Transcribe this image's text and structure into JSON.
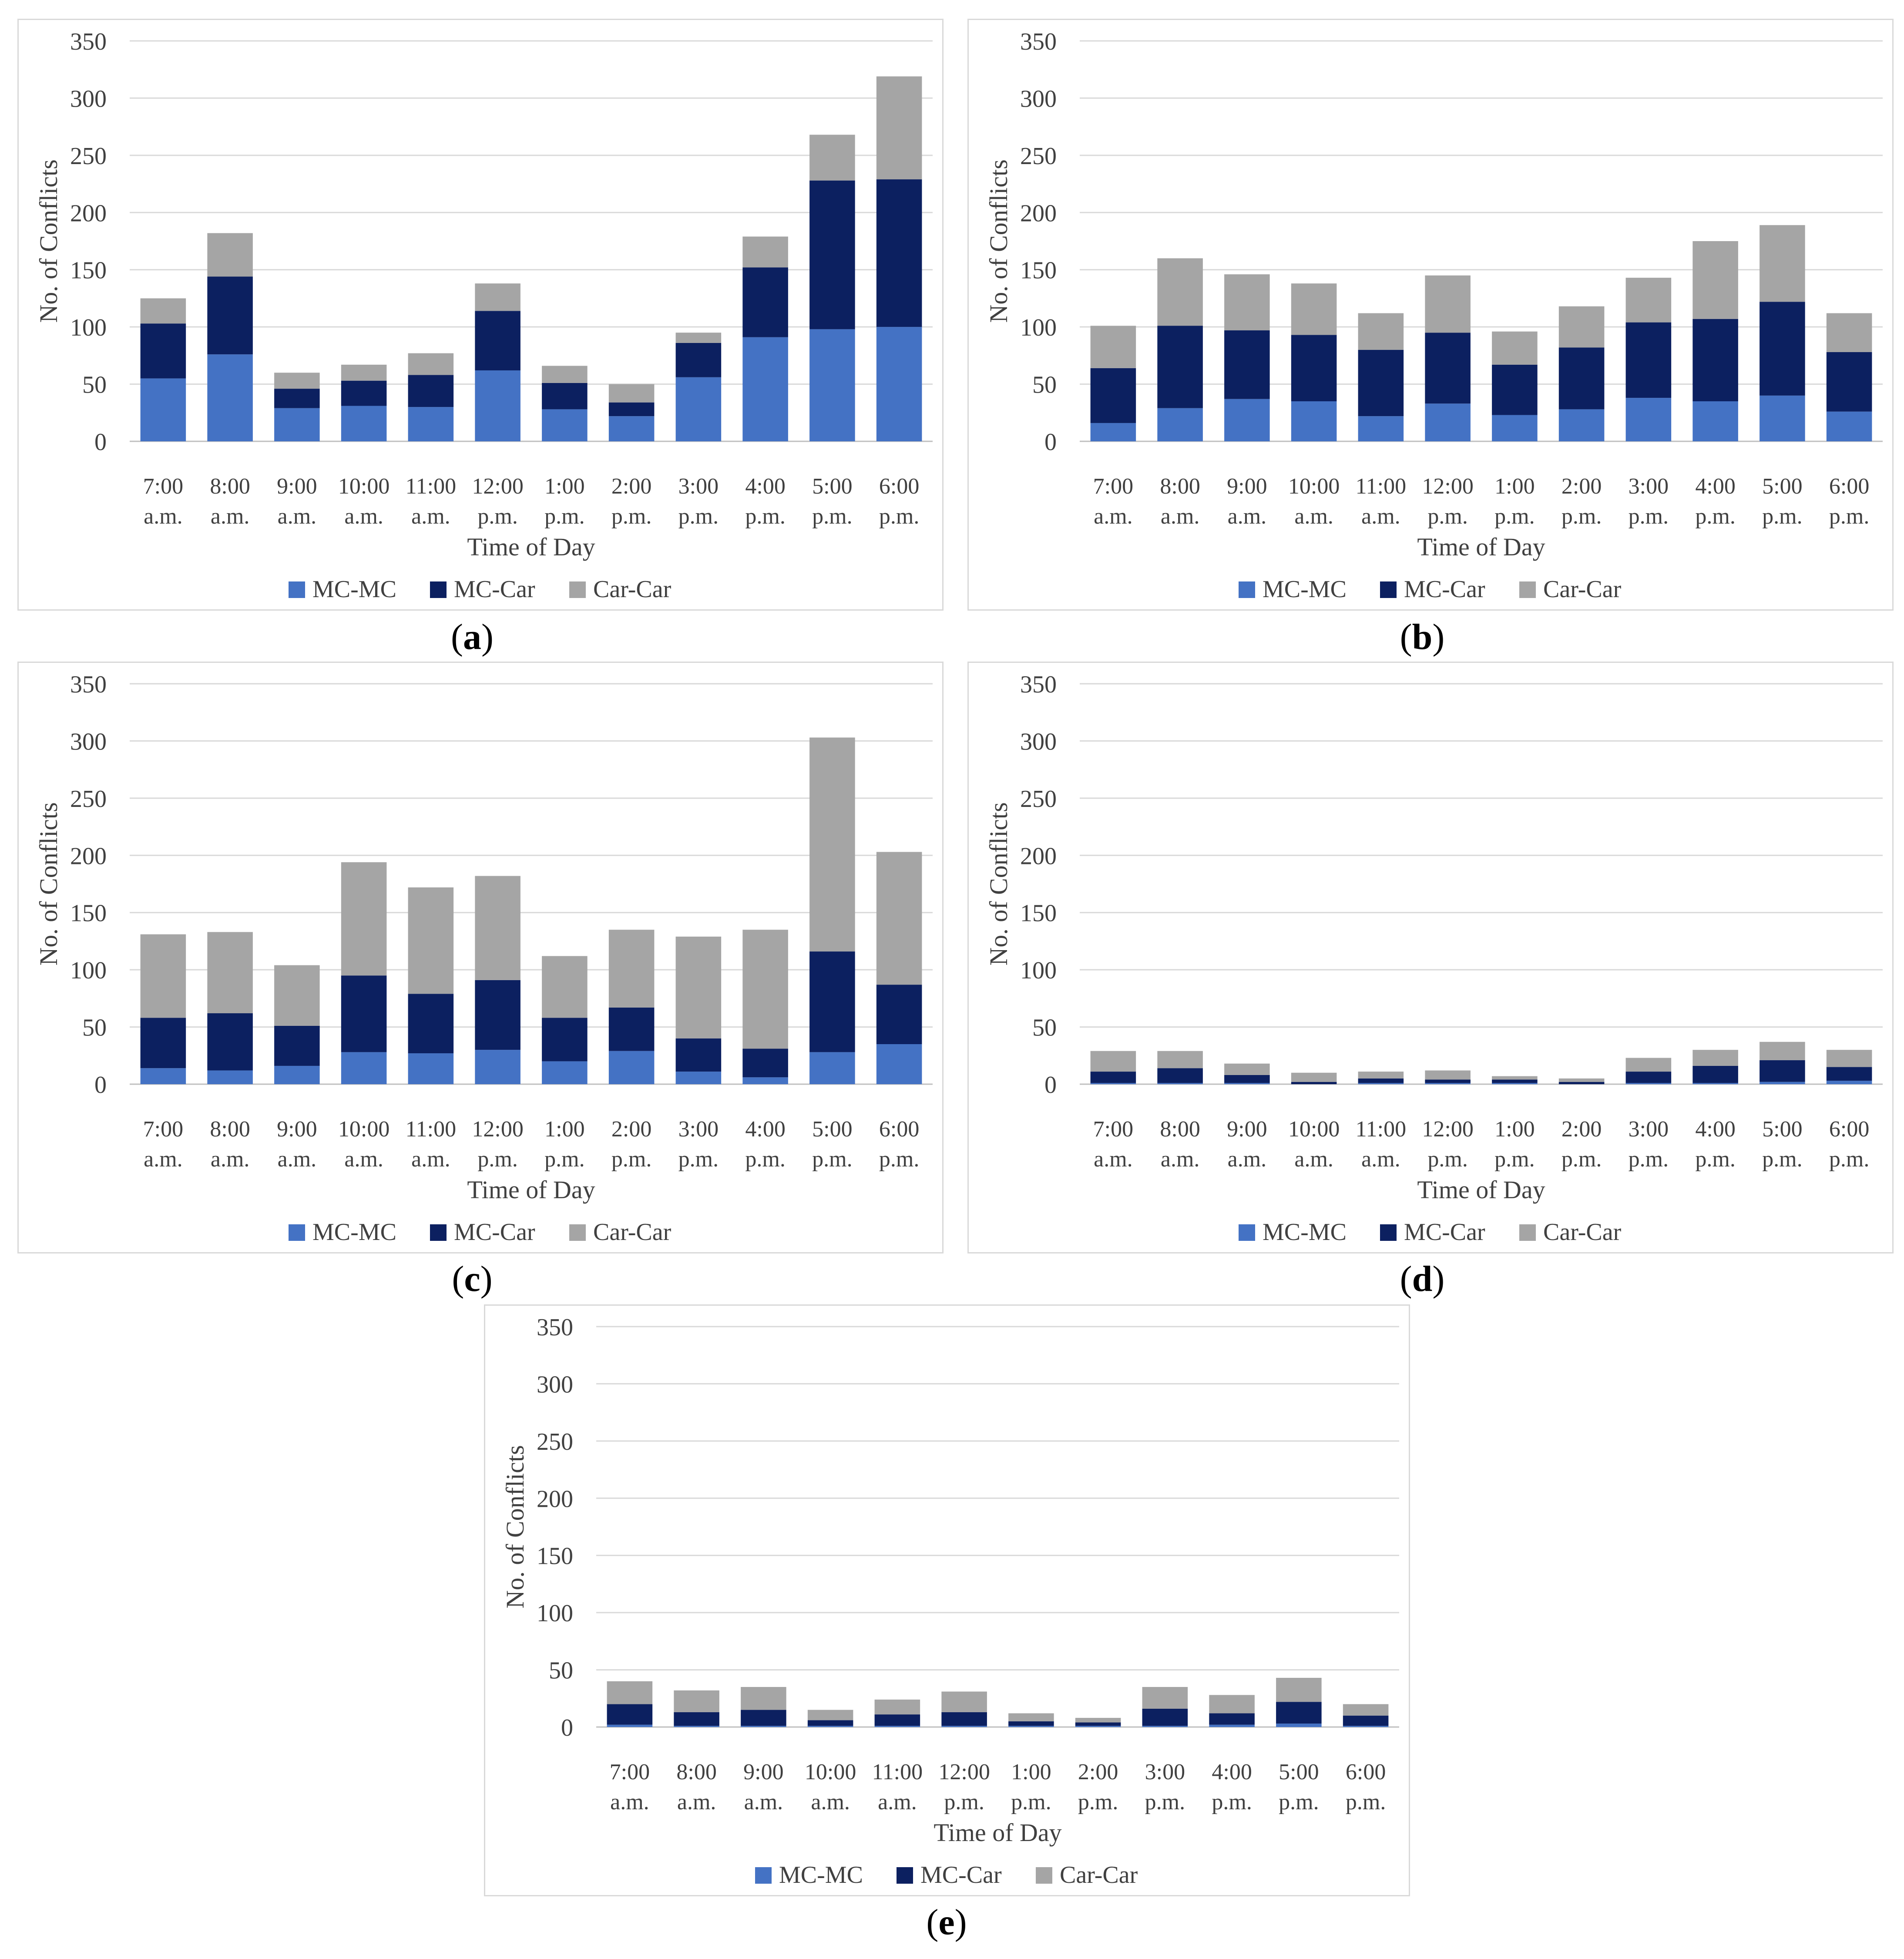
{
  "colors": {
    "MC-MC": "#4472c4",
    "MC-Car": "#0c2060",
    "Car-Car": "#a5a5a5",
    "grid": "#d9d9d9",
    "text": "#404040"
  },
  "common": {
    "ylabel": "No. of Conflicts",
    "xlabel": "Time of Day",
    "yticks": [
      "0",
      "50",
      "100",
      "150",
      "200",
      "250",
      "300",
      "350"
    ],
    "categories": [
      [
        "7:00",
        "a.m."
      ],
      [
        "8:00",
        "a.m."
      ],
      [
        "9:00",
        "a.m."
      ],
      [
        "10:00",
        "a.m."
      ],
      [
        "11:00",
        "a.m."
      ],
      [
        "12:00",
        "p.m."
      ],
      [
        "1:00",
        "p.m."
      ],
      [
        "2:00",
        "p.m."
      ],
      [
        "3:00",
        "p.m."
      ],
      [
        "4:00",
        "p.m."
      ],
      [
        "5:00",
        "p.m."
      ],
      [
        "6:00",
        "p.m."
      ]
    ],
    "legend": [
      "MC-MC",
      "MC-Car",
      "Car-Car"
    ]
  },
  "chart_data": [
    {
      "panel": "a",
      "caption": "a",
      "type": "bar",
      "stacked": true,
      "ylim": [
        0,
        350
      ],
      "xlabel": "Time of Day",
      "ylabel": "No. of Conflicts",
      "grid": true,
      "legend_position": "bottom",
      "categories": [
        "7:00 a.m.",
        "8:00 a.m.",
        "9:00 a.m.",
        "10:00 a.m.",
        "11:00 a.m.",
        "12:00 p.m.",
        "1:00 p.m.",
        "2:00 p.m.",
        "3:00 p.m.",
        "4:00 p.m.",
        "5:00 p.m.",
        "6:00 p.m."
      ],
      "series": [
        {
          "name": "MC-MC",
          "values": [
            55,
            76,
            29,
            31,
            30,
            62,
            28,
            22,
            56,
            91,
            98,
            100
          ]
        },
        {
          "name": "MC-Car",
          "values": [
            48,
            68,
            17,
            22,
            28,
            52,
            23,
            12,
            30,
            61,
            130,
            129
          ]
        },
        {
          "name": "Car-Car",
          "values": [
            22,
            38,
            14,
            14,
            19,
            24,
            15,
            16,
            9,
            27,
            40,
            90
          ]
        }
      ]
    },
    {
      "panel": "b",
      "caption": "b",
      "type": "bar",
      "stacked": true,
      "ylim": [
        0,
        350
      ],
      "xlabel": "Time of Day",
      "ylabel": "No. of Conflicts",
      "grid": true,
      "legend_position": "bottom",
      "categories": [
        "7:00 a.m.",
        "8:00 a.m.",
        "9:00 a.m.",
        "10:00 a.m.",
        "11:00 a.m.",
        "12:00 p.m.",
        "1:00 p.m.",
        "2:00 p.m.",
        "3:00 p.m.",
        "4:00 p.m.",
        "5:00 p.m.",
        "6:00 p.m."
      ],
      "series": [
        {
          "name": "MC-MC",
          "values": [
            16,
            29,
            37,
            35,
            22,
            33,
            23,
            28,
            38,
            35,
            40,
            26
          ]
        },
        {
          "name": "MC-Car",
          "values": [
            48,
            72,
            60,
            58,
            58,
            62,
            44,
            54,
            66,
            72,
            82,
            52
          ]
        },
        {
          "name": "Car-Car",
          "values": [
            37,
            59,
            49,
            45,
            32,
            50,
            29,
            36,
            39,
            68,
            67,
            34
          ]
        }
      ]
    },
    {
      "panel": "c",
      "caption": "c",
      "type": "bar",
      "stacked": true,
      "ylim": [
        0,
        350
      ],
      "xlabel": "Time of Day",
      "ylabel": "No. of Conflicts",
      "grid": true,
      "legend_position": "bottom",
      "categories": [
        "7:00 a.m.",
        "8:00 a.m.",
        "9:00 a.m.",
        "10:00 a.m.",
        "11:00 a.m.",
        "12:00 p.m.",
        "1:00 p.m.",
        "2:00 p.m.",
        "3:00 p.m.",
        "4:00 p.m.",
        "5:00 p.m.",
        "6:00 p.m."
      ],
      "series": [
        {
          "name": "MC-MC",
          "values": [
            14,
            12,
            16,
            28,
            27,
            30,
            20,
            29,
            11,
            6,
            28,
            35
          ]
        },
        {
          "name": "MC-Car",
          "values": [
            44,
            50,
            35,
            67,
            52,
            61,
            38,
            38,
            29,
            25,
            88,
            52
          ]
        },
        {
          "name": "Car-Car",
          "values": [
            73,
            71,
            53,
            99,
            93,
            91,
            54,
            68,
            89,
            104,
            187,
            116
          ]
        }
      ]
    },
    {
      "panel": "d",
      "caption": "d",
      "type": "bar",
      "stacked": true,
      "ylim": [
        0,
        350
      ],
      "xlabel": "Time of Day",
      "ylabel": "No. of Conflicts",
      "grid": true,
      "legend_position": "bottom",
      "categories": [
        "7:00 a.m.",
        "8:00 a.m.",
        "9:00 a.m.",
        "10:00 a.m.",
        "11:00 a.m.",
        "12:00 p.m.",
        "1:00 p.m.",
        "2:00 p.m.",
        "3:00 p.m.",
        "4:00 p.m.",
        "5:00 p.m.",
        "6:00 p.m."
      ],
      "series": [
        {
          "name": "MC-MC",
          "values": [
            1,
            1,
            1,
            0,
            1,
            1,
            1,
            0,
            1,
            1,
            2,
            3
          ]
        },
        {
          "name": "MC-Car",
          "values": [
            10,
            13,
            7,
            2,
            4,
            3,
            3,
            2,
            10,
            15,
            19,
            12
          ]
        },
        {
          "name": "Car-Car",
          "values": [
            18,
            15,
            10,
            8,
            6,
            8,
            3,
            3,
            12,
            14,
            16,
            15
          ]
        }
      ]
    },
    {
      "panel": "e",
      "caption": "e",
      "type": "bar",
      "stacked": true,
      "ylim": [
        0,
        350
      ],
      "xlabel": "Time of Day",
      "ylabel": "No. of Conflicts",
      "grid": true,
      "legend_position": "bottom",
      "categories": [
        "7:00 a.m.",
        "8:00 a.m.",
        "9:00 a.m.",
        "10:00 a.m.",
        "11:00 a.m.",
        "12:00 p.m.",
        "1:00 p.m.",
        "2:00 p.m.",
        "3:00 p.m.",
        "4:00 p.m.",
        "5:00 p.m.",
        "6:00 p.m."
      ],
      "series": [
        {
          "name": "MC-MC",
          "values": [
            2,
            1,
            1,
            1,
            1,
            1,
            1,
            1,
            1,
            2,
            3,
            1
          ]
        },
        {
          "name": "MC-Car",
          "values": [
            18,
            12,
            14,
            5,
            10,
            12,
            4,
            3,
            15,
            10,
            19,
            9
          ]
        },
        {
          "name": "Car-Car",
          "values": [
            20,
            19,
            20,
            9,
            13,
            18,
            7,
            4,
            19,
            16,
            21,
            10
          ]
        }
      ]
    }
  ]
}
